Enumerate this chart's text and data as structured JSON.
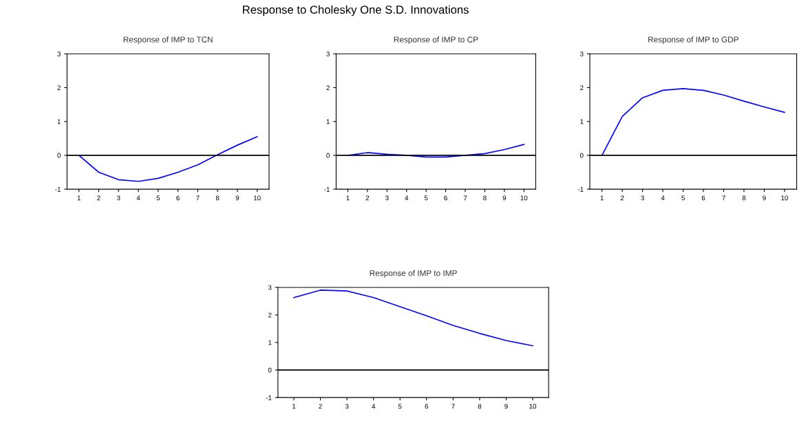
{
  "chart_data": [
    {
      "type": "line",
      "title": "Response of IMP to TCN",
      "annotations": [
        "Response to Cholesky One S.D. Innovations"
      ],
      "categories": [
        "1",
        "2",
        "3",
        "4",
        "5",
        "6",
        "7",
        "8",
        "9",
        "10"
      ],
      "ylim": [
        -1,
        3
      ],
      "yticks": [
        -1,
        0,
        1,
        2,
        3
      ],
      "grid": false,
      "legend": false,
      "series": [
        {
          "color": "#0000ff",
          "values": [
            0,
            -0.5,
            -0.72,
            -0.77,
            -0.68,
            -0.5,
            -0.28,
            0.02,
            0.3,
            0.55
          ]
        }
      ],
      "ref_lines": [
        {
          "axis": "y",
          "value": 0,
          "color": "#000000"
        }
      ]
    },
    {
      "type": "line",
      "title": "Response of IMP to CP",
      "categories": [
        "1",
        "2",
        "3",
        "4",
        "5",
        "6",
        "7",
        "8",
        "9",
        "10"
      ],
      "ylim": [
        -1,
        3
      ],
      "yticks": [
        -1,
        0,
        1,
        2,
        3
      ],
      "grid": false,
      "legend": false,
      "series": [
        {
          "color": "#0000ff",
          "values": [
            0,
            0.08,
            0.03,
            0,
            -0.05,
            -0.05,
            0,
            0.05,
            0.17,
            0.32
          ]
        }
      ],
      "ref_lines": [
        {
          "axis": "y",
          "value": 0,
          "color": "#000000"
        }
      ]
    },
    {
      "type": "line",
      "title": "Response of IMP to GDP",
      "categories": [
        "1",
        "2",
        "3",
        "4",
        "5",
        "6",
        "7",
        "8",
        "9",
        "10"
      ],
      "ylim": [
        -1,
        3
      ],
      "yticks": [
        -1,
        0,
        1,
        2,
        3
      ],
      "grid": false,
      "legend": false,
      "series": [
        {
          "color": "#0000ff",
          "values": [
            0,
            1.15,
            1.7,
            1.92,
            1.97,
            1.92,
            1.78,
            1.6,
            1.43,
            1.27
          ]
        }
      ],
      "ref_lines": [
        {
          "axis": "y",
          "value": 0,
          "color": "#000000"
        }
      ]
    },
    {
      "type": "line",
      "title": "Response of IMP to IMP",
      "categories": [
        "1",
        "2",
        "3",
        "4",
        "5",
        "6",
        "7",
        "8",
        "9",
        "10"
      ],
      "ylim": [
        -1,
        3
      ],
      "yticks": [
        -1,
        0,
        1,
        2,
        3
      ],
      "grid": false,
      "legend": false,
      "series": [
        {
          "color": "#0000ff",
          "values": [
            2.63,
            2.9,
            2.87,
            2.63,
            2.3,
            1.97,
            1.62,
            1.33,
            1.07,
            0.88
          ]
        }
      ],
      "ref_lines": [
        {
          "axis": "y",
          "value": 0,
          "color": "#000000"
        }
      ]
    }
  ]
}
